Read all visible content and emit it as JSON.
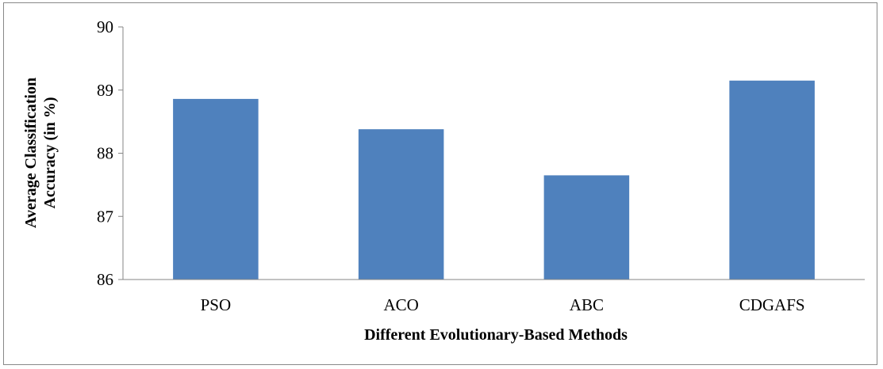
{
  "chart_data": {
    "type": "bar",
    "categories": [
      "PSO",
      "ACO",
      "ABC",
      "CDGAFS"
    ],
    "values": [
      88.86,
      88.38,
      87.65,
      89.15
    ],
    "ylim": [
      86,
      90
    ],
    "yticks": [
      86,
      87,
      88,
      89,
      90
    ],
    "xlabel": "Different Evolutionary-Based Methods",
    "ylabel_lines": [
      "Average Classification",
      "Accuracy (in %)"
    ],
    "grid": false,
    "legend": "none",
    "colors": {
      "bar": "#4f81bd",
      "axis": "#868686",
      "frame": "#888888"
    }
  }
}
